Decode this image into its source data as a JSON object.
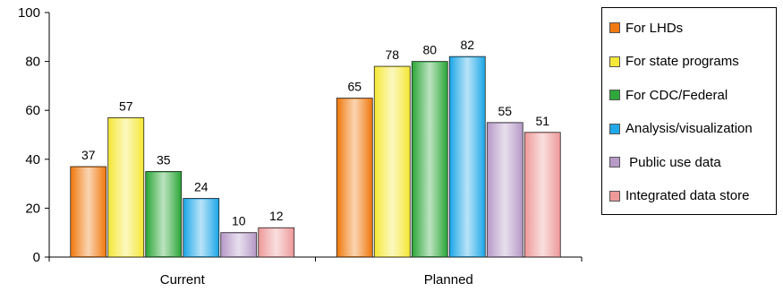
{
  "chart_data": {
    "type": "bar",
    "title": "",
    "xlabel": "",
    "ylabel": "",
    "ylim": [
      0,
      100
    ],
    "yticks": [
      0,
      20,
      40,
      60,
      80,
      100
    ],
    "categories": [
      "Current",
      "Planned"
    ],
    "series": [
      {
        "name": "For LHDs",
        "color": "#f07a10",
        "values": [
          37,
          65
        ]
      },
      {
        "name": "For state programs",
        "color": "#f5e838",
        "values": [
          57,
          78
        ]
      },
      {
        "name": "For CDC/Federal",
        "color": "#2ea83a",
        "values": [
          35,
          80
        ]
      },
      {
        "name": "Analysis/visualization",
        "color": "#20a8e8",
        "values": [
          24,
          82
        ]
      },
      {
        "name": " Public use data",
        "color": "#b79ac8",
        "values": [
          10,
          55
        ]
      },
      {
        "name": "Integrated data store",
        "color": "#ee9a9a",
        "values": [
          12,
          51
        ]
      }
    ],
    "grid": false,
    "legend_position": "right"
  }
}
